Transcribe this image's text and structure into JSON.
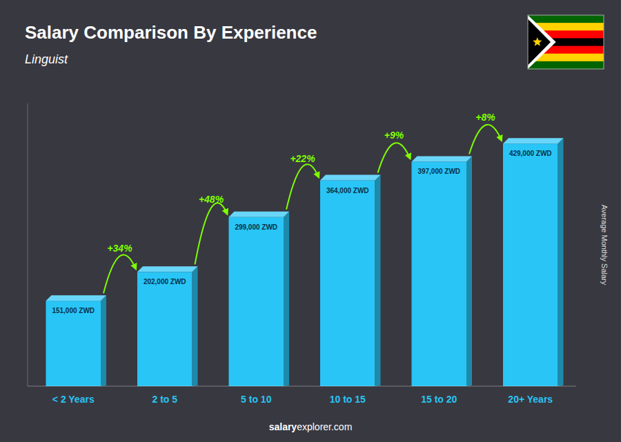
{
  "chart_data": {
    "type": "bar",
    "title": "Salary Comparison By Experience",
    "subtitle": "Linguist",
    "categories": [
      "< 2 Years",
      "2 to 5",
      "5 to 10",
      "10 to 15",
      "15 to 20",
      "20+ Years"
    ],
    "values": [
      151000,
      202000,
      299000,
      364000,
      397000,
      429000
    ],
    "value_labels": [
      "151,000 ZWD",
      "202,000 ZWD",
      "299,000 ZWD",
      "364,000 ZWD",
      "397,000 ZWD",
      "429,000 ZWD"
    ],
    "data_labels": true,
    "color": "#29c5f6",
    "ylim": [
      0,
      500000
    ],
    "ylabel": "Average Monthly Salary",
    "annotations": [
      "+34%",
      "+48%",
      "+22%",
      "+9%",
      "+8%"
    ],
    "watermark": [
      "salary",
      "explorer.com"
    ],
    "grid": false,
    "tick_labels": "x"
  }
}
